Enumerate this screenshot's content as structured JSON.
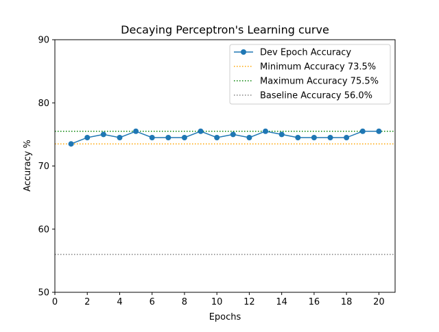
{
  "chart_data": {
    "type": "line",
    "title": "Decaying Perceptron's Learning curve",
    "xlabel": "Epochs",
    "ylabel": "Accuracy %",
    "xlim": [
      0,
      21
    ],
    "ylim": [
      50,
      90
    ],
    "xticks": [
      0,
      2,
      4,
      6,
      8,
      10,
      12,
      14,
      16,
      18,
      20
    ],
    "yticks": [
      50,
      60,
      70,
      80,
      90
    ],
    "grid": false,
    "legend_position": "upper right",
    "series": [
      {
        "name": "Dev Epoch Accuracy",
        "color": "#1f77b4",
        "marker": "circle",
        "x": [
          1,
          2,
          3,
          4,
          5,
          6,
          7,
          8,
          9,
          10,
          11,
          12,
          13,
          14,
          15,
          16,
          17,
          18,
          19,
          20
        ],
        "y": [
          73.5,
          74.5,
          75.0,
          74.5,
          75.5,
          74.5,
          74.5,
          74.5,
          75.5,
          74.5,
          75.0,
          74.5,
          75.5,
          75.0,
          74.5,
          74.5,
          74.5,
          74.5,
          75.5,
          75.5
        ]
      }
    ],
    "reference_lines": [
      {
        "name": "Minimum Accuracy 73.5%",
        "value": 73.5,
        "color": "#ffa500",
        "style": "dotted"
      },
      {
        "name": "Maximum Accuracy 75.5%",
        "value": 75.5,
        "color": "#008000",
        "style": "dotted"
      },
      {
        "name": "Baseline Accuracy 56.0%",
        "value": 56.0,
        "color": "#808080",
        "style": "dotted"
      }
    ]
  }
}
